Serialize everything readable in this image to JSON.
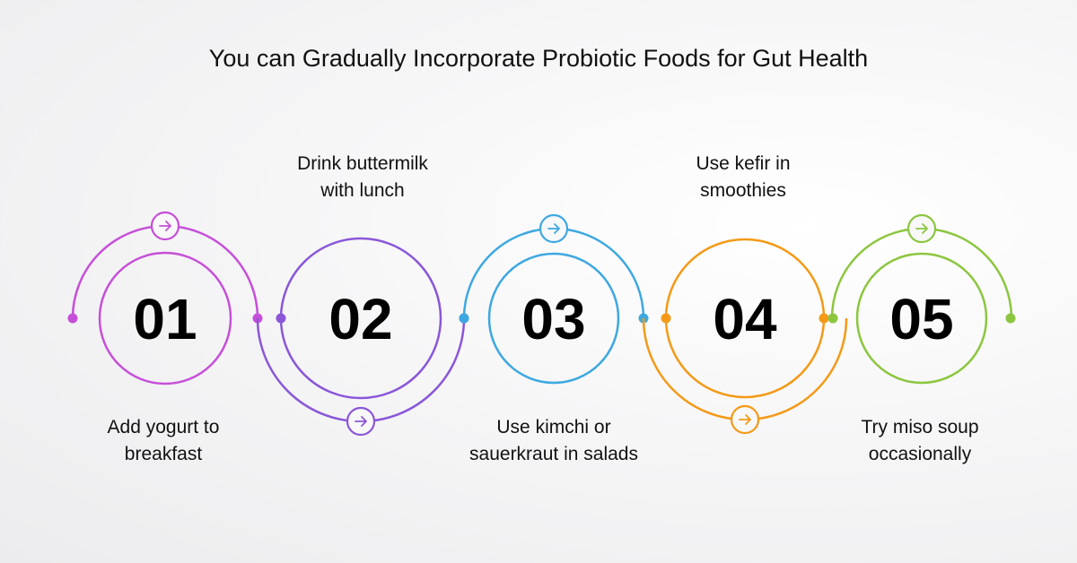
{
  "title": "You can Gradually Incorporate Probiotic Foods for Gut Health",
  "steps": [
    {
      "number": "01",
      "line1": "Add yogurt to",
      "line2": "breakfast",
      "color": "#c64fd8"
    },
    {
      "number": "02",
      "line1": "Drink buttermilk",
      "line2": "with lunch",
      "color": "#8a57d8"
    },
    {
      "number": "03",
      "line1": "Use kimchi or",
      "line2": "sauerkraut in salads",
      "color": "#3da8e0"
    },
    {
      "number": "04",
      "line1": "Use kefir in",
      "line2": "smoothies",
      "color": "#f49a16"
    },
    {
      "number": "05",
      "line1": "Try miso soup",
      "line2": "occasionally",
      "color": "#8cc63f"
    }
  ],
  "icons": {
    "badge": "arrow-right-icon"
  }
}
